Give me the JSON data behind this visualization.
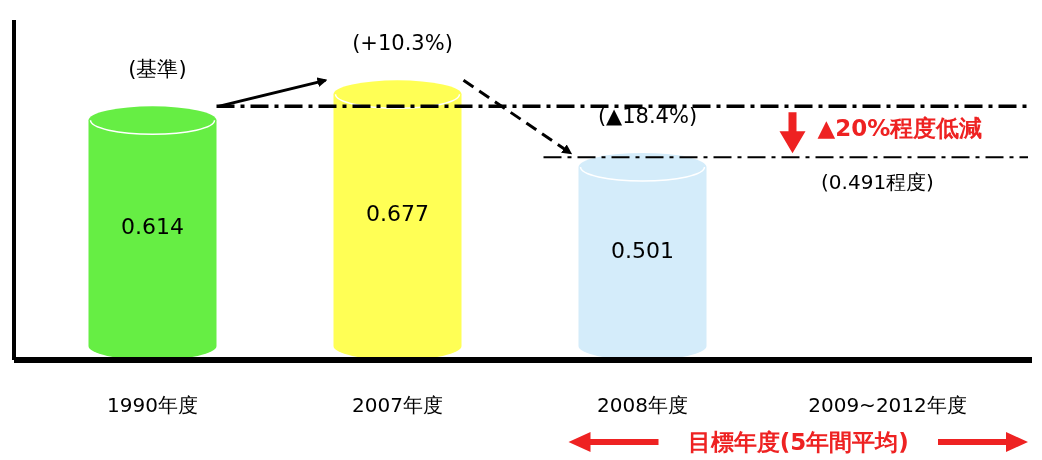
{
  "chart_data": {
    "type": "bar",
    "categories": [
      "1990年度",
      "2007年度",
      "2008年度",
      "2009~2012年度"
    ],
    "values": [
      0.614,
      0.677,
      0.501,
      null
    ],
    "colors": [
      "#66ee44",
      "#ffff55",
      "#d4ecfa",
      null
    ],
    "data_labels": true,
    "tick_labels": "x",
    "ref_lines": [
      {
        "axis": "y",
        "value": 0.614,
        "color": "#000000"
      },
      {
        "axis": "y",
        "value": 0.491,
        "label": "(0.491程度)",
        "color": "#000000"
      }
    ],
    "annotations": [
      {
        "text": "(基準)",
        "x": "1990年度",
        "y": 0.614
      },
      {
        "text": "(+10.3%)",
        "x": "2007年度",
        "y": 0.677
      },
      {
        "text": "(▲18.4%)",
        "x": "2008年度",
        "y": 0.501
      },
      "▲20%程度低減",
      "目標年度(5年間平均)"
    ]
  }
}
